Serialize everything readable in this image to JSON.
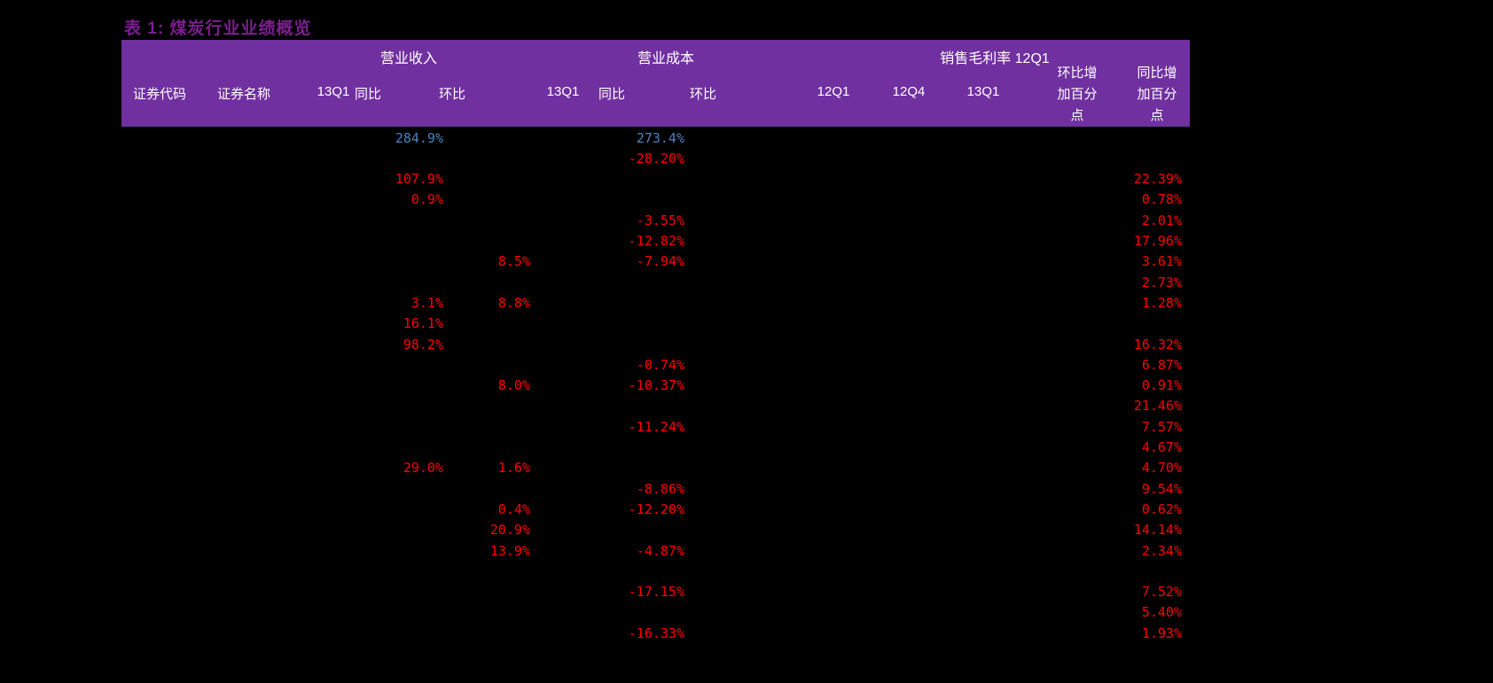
{
  "title": "表 1: 煤炭行业业绩概览",
  "colors": {
    "background": "#000000",
    "title_text": "#7B1E8F",
    "header_bg": "#7030A0",
    "header_text": "#FFFFFF",
    "value_red": "#FF0000",
    "value_blue": "#4F81BD"
  },
  "table": {
    "group_headers": [
      "营业收入",
      "营业成本",
      "销售毛利率 12Q1"
    ],
    "column_headers": [
      "证券代码",
      "证券名称",
      "13Q1",
      "同比",
      "环比",
      "13Q1",
      "同比",
      "环比",
      "12Q1",
      "12Q4",
      "13Q1",
      "环比增加百分点",
      "同比增加百分点"
    ],
    "rows": [
      [
        {
          "col": 3,
          "value": "284.9%",
          "color": "blue"
        },
        {
          "col": 6,
          "value": "273.4%",
          "color": "blue"
        }
      ],
      [
        {
          "col": 6,
          "value": "-28.20%",
          "color": "red"
        }
      ],
      [
        {
          "col": 3,
          "value": "107.9%",
          "color": "red"
        },
        {
          "col": 12,
          "value": "22.39%",
          "color": "red"
        }
      ],
      [
        {
          "col": 3,
          "value": "0.9%",
          "color": "red"
        },
        {
          "col": 12,
          "value": "0.78%",
          "color": "red"
        }
      ],
      [
        {
          "col": 6,
          "value": "-3.55%",
          "color": "red"
        },
        {
          "col": 12,
          "value": "2.01%",
          "color": "red"
        }
      ],
      [
        {
          "col": 6,
          "value": "-12.82%",
          "color": "red"
        },
        {
          "col": 12,
          "value": "17.96%",
          "color": "red"
        }
      ],
      [
        {
          "col": 4,
          "value": "8.5%",
          "color": "red"
        },
        {
          "col": 6,
          "value": "-7.94%",
          "color": "red"
        },
        {
          "col": 12,
          "value": "3.61%",
          "color": "red"
        }
      ],
      [
        {
          "col": 12,
          "value": "2.73%",
          "color": "red"
        }
      ],
      [
        {
          "col": 3,
          "value": "3.1%",
          "color": "red"
        },
        {
          "col": 4,
          "value": "8.8%",
          "color": "red"
        },
        {
          "col": 12,
          "value": "1.28%",
          "color": "red"
        }
      ],
      [
        {
          "col": 3,
          "value": "16.1%",
          "color": "red"
        }
      ],
      [
        {
          "col": 3,
          "value": "98.2%",
          "color": "red"
        },
        {
          "col": 12,
          "value": "16.32%",
          "color": "red"
        }
      ],
      [
        {
          "col": 6,
          "value": "-0.74%",
          "color": "red"
        },
        {
          "col": 12,
          "value": "6.87%",
          "color": "red"
        }
      ],
      [
        {
          "col": 4,
          "value": "8.0%",
          "color": "red"
        },
        {
          "col": 6,
          "value": "-10.37%",
          "color": "red"
        },
        {
          "col": 12,
          "value": "0.91%",
          "color": "red"
        }
      ],
      [
        {
          "col": 12,
          "value": "21.46%",
          "color": "red"
        }
      ],
      [
        {
          "col": 6,
          "value": "-11.24%",
          "color": "red"
        },
        {
          "col": 12,
          "value": "7.57%",
          "color": "red"
        }
      ],
      [
        {
          "col": 12,
          "value": "4.67%",
          "color": "red"
        }
      ],
      [
        {
          "col": 3,
          "value": "29.0%",
          "color": "red"
        },
        {
          "col": 4,
          "value": "1.6%",
          "color": "red"
        },
        {
          "col": 12,
          "value": "4.70%",
          "color": "red"
        }
      ],
      [
        {
          "col": 6,
          "value": "-8.86%",
          "color": "red"
        },
        {
          "col": 12,
          "value": "9.54%",
          "color": "red"
        }
      ],
      [
        {
          "col": 4,
          "value": "0.4%",
          "color": "red"
        },
        {
          "col": 6,
          "value": "-12.20%",
          "color": "red"
        },
        {
          "col": 12,
          "value": "0.62%",
          "color": "red"
        }
      ],
      [
        {
          "col": 4,
          "value": "20.9%",
          "color": "red"
        },
        {
          "col": 12,
          "value": "14.14%",
          "color": "red"
        }
      ],
      [
        {
          "col": 4,
          "value": "13.9%",
          "color": "red"
        },
        {
          "col": 6,
          "value": "-4.87%",
          "color": "red"
        },
        {
          "col": 12,
          "value": "2.34%",
          "color": "red"
        }
      ],
      [],
      [
        {
          "col": 6,
          "value": "-17.15%",
          "color": "red"
        },
        {
          "col": 12,
          "value": "7.52%",
          "color": "red"
        }
      ],
      [
        {
          "col": 12,
          "value": "5.40%",
          "color": "red"
        }
      ],
      [
        {
          "col": 6,
          "value": "-16.33%",
          "color": "red"
        },
        {
          "col": 12,
          "value": "1.93%",
          "color": "red"
        }
      ]
    ]
  }
}
